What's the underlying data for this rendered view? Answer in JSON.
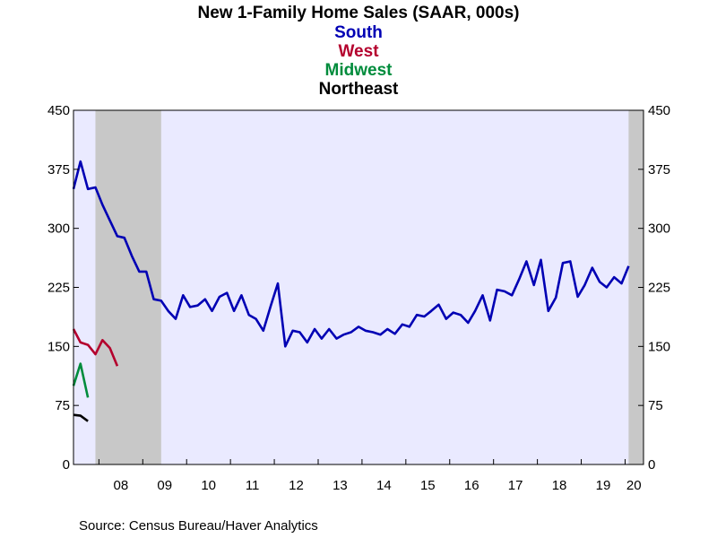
{
  "chart_data": {
    "type": "line",
    "title": "New 1-Family Home Sales (SAAR, 000s)",
    "source": "Source:  Census Bureau/Haver Analytics",
    "x_range": [
      2007.42,
      2020.42
    ],
    "ylim": [
      0,
      450
    ],
    "y_ticks": [
      0,
      75,
      150,
      225,
      300,
      375,
      450
    ],
    "y_tick_labels": [
      "0",
      "75",
      "150",
      "225",
      "300",
      "375",
      "450"
    ],
    "x_ticks": [
      2008.5,
      2009.5,
      2010.5,
      2011.5,
      2012.5,
      2013.5,
      2014.5,
      2015.5,
      2016.5,
      2017.5,
      2018.5,
      2019.5,
      2020.2
    ],
    "x_tick_labels": [
      "08",
      "09",
      "10",
      "11",
      "12",
      "13",
      "14",
      "15",
      "16",
      "17",
      "18",
      "19",
      "20"
    ],
    "colors": {
      "plot_bg": "#eaeaff",
      "recession": "#c8c8c8"
    },
    "recessions": [
      [
        2007.92,
        2009.42
      ],
      [
        2020.08,
        2020.42
      ]
    ],
    "series": [
      {
        "name": "South",
        "color": "#0000b4",
        "points": [
          [
            2007.42,
            350
          ],
          [
            2007.58,
            385
          ],
          [
            2007.75,
            350
          ],
          [
            2007.92,
            352
          ],
          [
            2008.08,
            330
          ],
          [
            2008.25,
            310
          ],
          [
            2008.42,
            290
          ],
          [
            2008.58,
            288
          ],
          [
            2008.75,
            265
          ],
          [
            2008.92,
            245
          ],
          [
            2009.08,
            245
          ],
          [
            2009.25,
            210
          ],
          [
            2009.42,
            208
          ],
          [
            2009.58,
            195
          ],
          [
            2009.75,
            185
          ],
          [
            2009.92,
            215
          ],
          [
            2010.08,
            200
          ],
          [
            2010.25,
            202
          ],
          [
            2010.42,
            210
          ],
          [
            2010.58,
            195
          ],
          [
            2010.75,
            213
          ],
          [
            2010.92,
            218
          ],
          [
            2011.08,
            195
          ],
          [
            2011.25,
            215
          ],
          [
            2011.42,
            190
          ],
          [
            2011.58,
            185
          ],
          [
            2011.75,
            170
          ],
          [
            2011.92,
            202
          ],
          [
            2012.08,
            230
          ],
          [
            2012.25,
            150
          ],
          [
            2012.42,
            170
          ],
          [
            2012.58,
            168
          ],
          [
            2012.75,
            155
          ],
          [
            2012.92,
            172
          ],
          [
            2013.08,
            160
          ],
          [
            2013.25,
            172
          ],
          [
            2013.42,
            160
          ],
          [
            2013.58,
            165
          ],
          [
            2013.75,
            168
          ],
          [
            2013.92,
            175
          ],
          [
            2014.08,
            170
          ],
          [
            2014.25,
            168
          ],
          [
            2014.42,
            165
          ],
          [
            2014.58,
            172
          ],
          [
            2014.75,
            166
          ],
          [
            2014.92,
            178
          ],
          [
            2015.08,
            175
          ],
          [
            2015.25,
            190
          ],
          [
            2015.42,
            188
          ],
          [
            2015.58,
            195
          ],
          [
            2015.75,
            203
          ],
          [
            2015.92,
            185
          ],
          [
            2016.08,
            193
          ],
          [
            2016.25,
            190
          ],
          [
            2016.42,
            180
          ],
          [
            2016.58,
            195
          ],
          [
            2016.75,
            215
          ],
          [
            2016.92,
            183
          ],
          [
            2017.08,
            222
          ],
          [
            2017.25,
            220
          ],
          [
            2017.42,
            215
          ],
          [
            2017.58,
            235
          ],
          [
            2017.75,
            258
          ],
          [
            2017.92,
            228
          ],
          [
            2018.08,
            260
          ],
          [
            2018.25,
            195
          ],
          [
            2018.42,
            212
          ],
          [
            2018.58,
            256
          ],
          [
            2018.75,
            258
          ],
          [
            2018.92,
            213
          ],
          [
            2019.08,
            228
          ],
          [
            2019.25,
            250
          ],
          [
            2019.42,
            232
          ],
          [
            2019.58,
            225
          ],
          [
            2019.75,
            238
          ],
          [
            2019.92,
            230
          ],
          [
            2020.08,
            252
          ]
        ]
      },
      {
        "name": "West",
        "color": "#b4002d",
        "points": [
          [
            2007.42,
            172
          ],
          [
            2007.58,
            155
          ],
          [
            2007.75,
            152
          ],
          [
            2007.92,
            140
          ],
          [
            2008.08,
            158
          ],
          [
            2008.25,
            148
          ],
          [
            2008.42,
            125
          ]
        ]
      },
      {
        "name": "Midwest",
        "color": "#008c3c",
        "points": [
          [
            2007.42,
            100
          ],
          [
            2007.58,
            128
          ],
          [
            2007.75,
            85
          ]
        ]
      },
      {
        "name": "Northeast",
        "color": "#000000",
        "points": [
          [
            2007.42,
            63
          ],
          [
            2007.58,
            62
          ],
          [
            2007.75,
            55
          ]
        ]
      }
    ]
  }
}
